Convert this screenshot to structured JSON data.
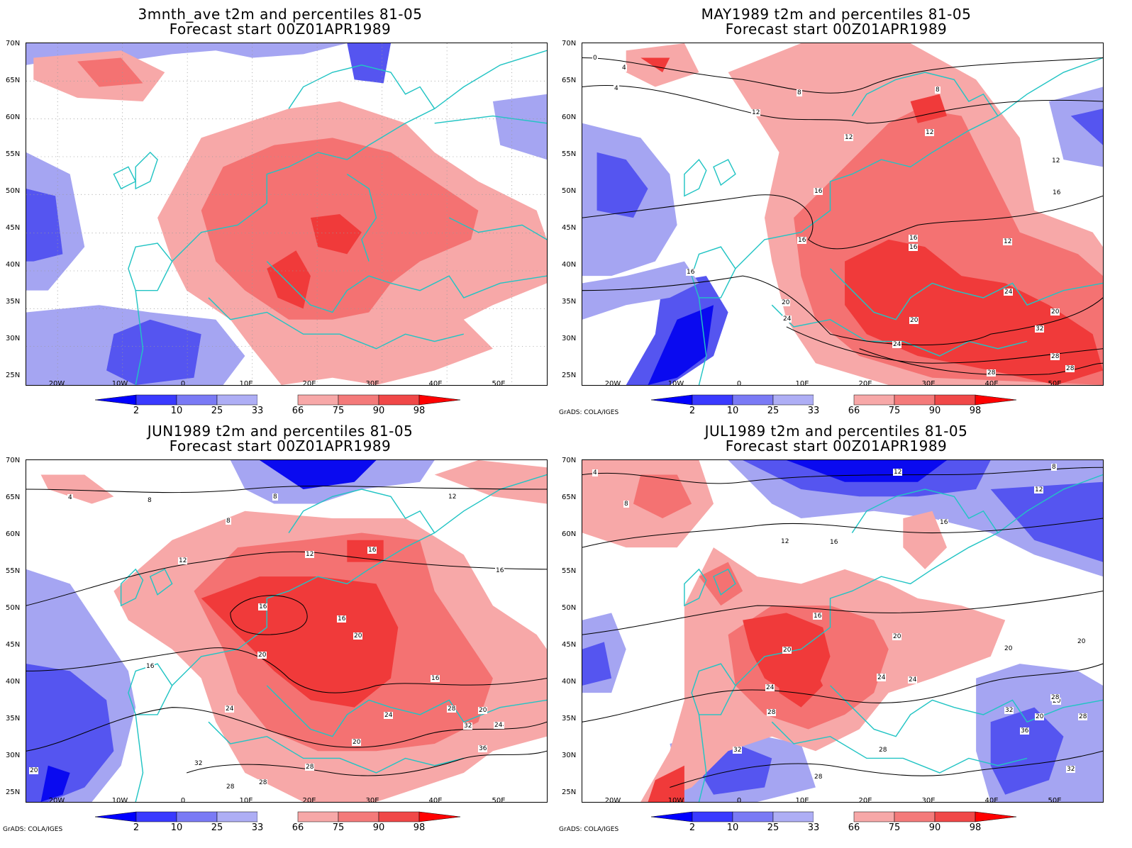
{
  "figure": {
    "panels": [
      {
        "id": "p1",
        "title_line1": "3mnth_ave t2m and percentiles 81-05",
        "title_line2": "Forecast start 00Z01APR1989",
        "has_contours": false,
        "credit": ""
      },
      {
        "id": "p2",
        "title_line1": "MAY1989 t2m and percentiles 81-05",
        "title_line2": "Forecast start 00Z01APR1989",
        "has_contours": true,
        "credit": "GrADS: COLA/IGES"
      },
      {
        "id": "p3",
        "title_line1": "JUN1989 t2m and percentiles 81-05",
        "title_line2": "Forecast start 00Z01APR1989",
        "has_contours": true,
        "credit": "GrADS: COLA/IGES"
      },
      {
        "id": "p4",
        "title_line1": "JUL1989 t2m and percentiles 81-05",
        "title_line2": "Forecast start 00Z01APR1989",
        "has_contours": true,
        "credit": "GrADS: COLA/IGES"
      }
    ],
    "lat_labels": [
      "70N",
      "65N",
      "60N",
      "55N",
      "50N",
      "45N",
      "40N",
      "35N",
      "30N",
      "25N"
    ],
    "lon_labels": [
      "20W",
      "10W",
      "0",
      "10E",
      "20E",
      "30E",
      "40E",
      "50E"
    ],
    "colorbar": {
      "labels": [
        "2",
        "10",
        "25",
        "33",
        "66",
        "75",
        "90",
        "98"
      ],
      "colors": [
        "#0000ff",
        "#3a3aff",
        "#7a7af5",
        "#aeaef5",
        "#ffffff",
        "#f7a8a8",
        "#f47a7a",
        "#f04848",
        "#ff0000"
      ]
    },
    "shading_colors": {
      "blue_dark": "#0a0af0",
      "blue_mid": "#5555f0",
      "blue_light": "#a5a5f2",
      "red_light": "#f7a8a8",
      "red_mid": "#f47272",
      "red_dark": "#f03a3a",
      "coast": "#22c4c4"
    },
    "contour_labels": {
      "p2": [
        "0",
        "4",
        "4",
        "8",
        "8",
        "12",
        "12",
        "12",
        "12",
        "16",
        "16",
        "16",
        "16",
        "16",
        "12",
        "16",
        "20",
        "24",
        "20",
        "24",
        "20",
        "24",
        "32",
        "28",
        "28",
        "28"
      ],
      "p3": [
        "4",
        "8",
        "8",
        "8",
        "12",
        "12",
        "16",
        "12",
        "16",
        "16",
        "20",
        "20",
        "16",
        "16",
        "16",
        "20",
        "24",
        "24",
        "28",
        "32",
        "24",
        "20",
        "24",
        "36",
        "32",
        "28",
        "28",
        "28",
        "20"
      ],
      "p4": [
        "4",
        "8",
        "12",
        "8",
        "12",
        "16",
        "12",
        "16",
        "16",
        "20",
        "20",
        "20",
        "24",
        "24",
        "24",
        "20",
        "20",
        "28",
        "28",
        "32",
        "32",
        "24",
        "20",
        "36",
        "28",
        "28",
        "32",
        "28"
      ]
    }
  }
}
